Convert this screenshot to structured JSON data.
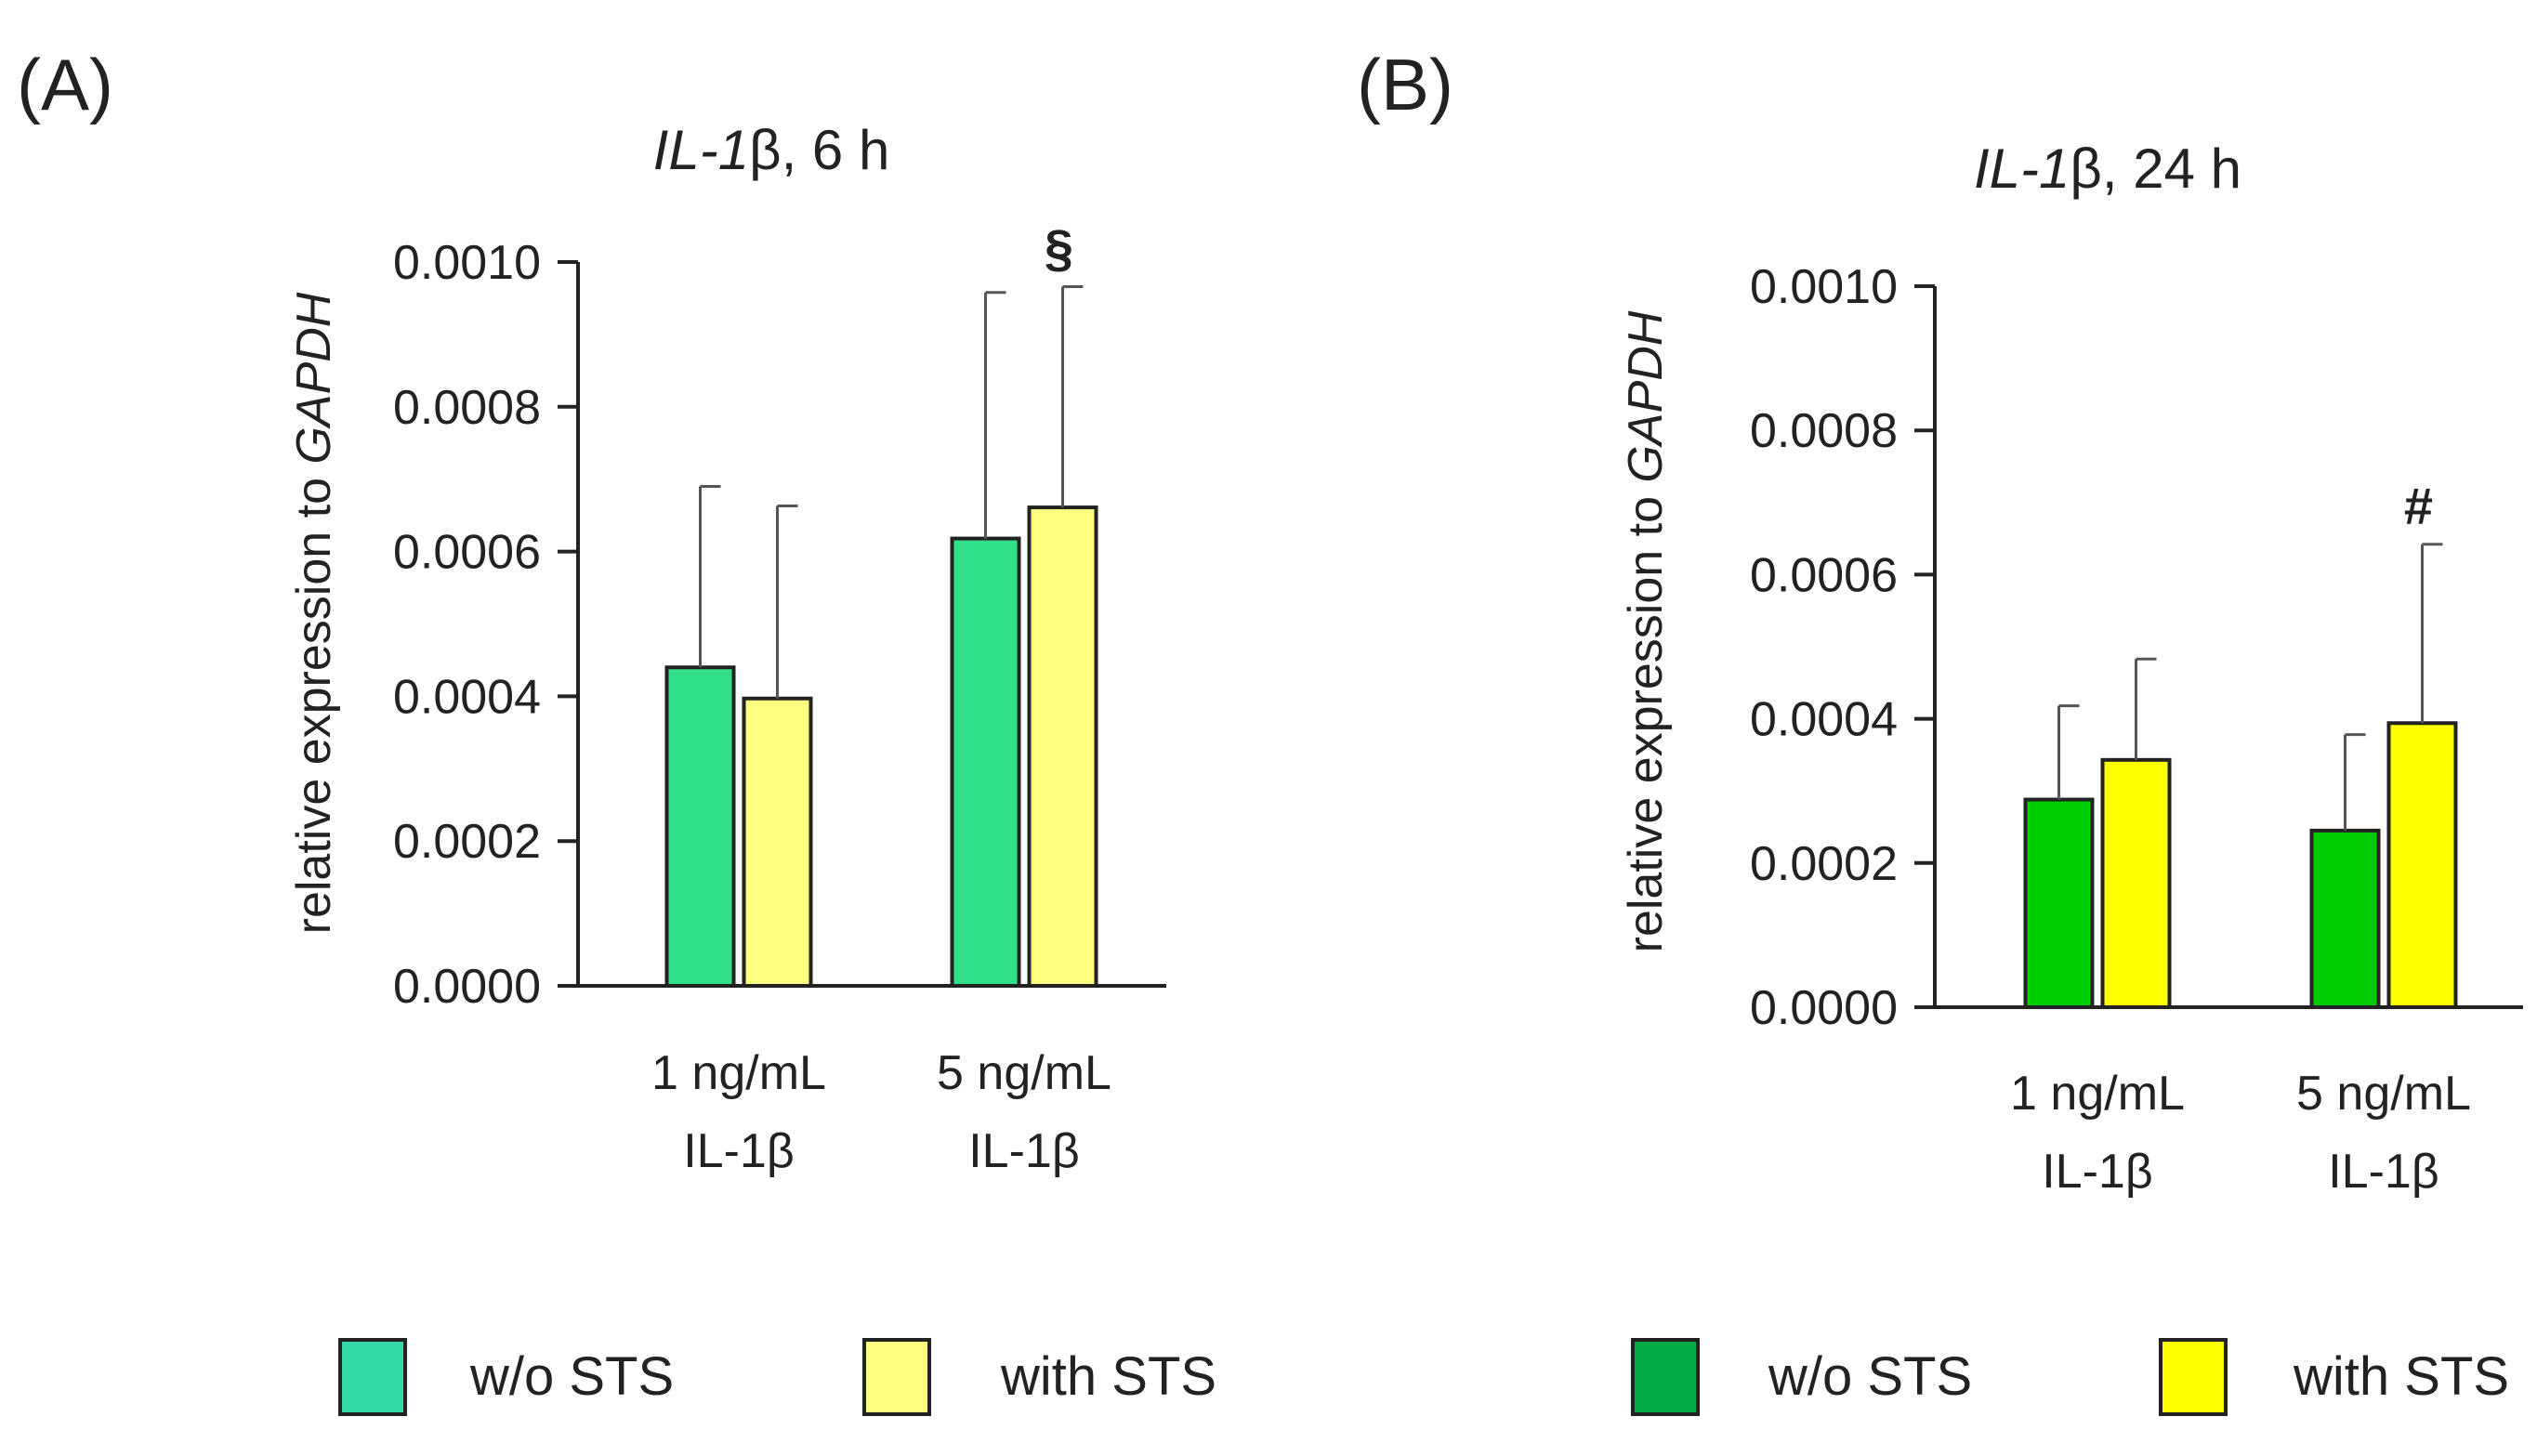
{
  "chart_data": [
    {
      "type": "bar",
      "panel_label": "(A)",
      "title_gene": "IL-1",
      "title_suffix": "β, 6 h",
      "ylabel_prefix": "relative expression to ",
      "ylabel_gene": "GAPDH",
      "ylim": [
        0,
        0.001
      ],
      "yticks": [
        "0.0000",
        "0.0002",
        "0.0004",
        "0.0006",
        "0.0008",
        "0.0010"
      ],
      "categories": [
        {
          "line1": "1 ng/mL",
          "line2": "IL-1β"
        },
        {
          "line1": "5 ng/mL",
          "line2": "IL-1β"
        }
      ],
      "series": [
        {
          "name": "w/o STS",
          "color": "#33e08a",
          "legend_color": "#33d9a6",
          "values": [
            0.00044,
            0.000618
          ],
          "errors": [
            0.00025,
            0.00034
          ]
        },
        {
          "name": "with STS",
          "color": "#ffff80",
          "legend_color": "#ffff80",
          "values": [
            0.000397,
            0.000661
          ],
          "errors": [
            0.000266,
            0.000305
          ]
        }
      ],
      "annotations": [
        {
          "series": 1,
          "category": 1,
          "text": "§"
        }
      ]
    },
    {
      "type": "bar",
      "panel_label": "(B)",
      "title_gene": "IL-1",
      "title_suffix": "β, 24 h",
      "ylabel_prefix": "relative expression to ",
      "ylabel_gene": "GAPDH",
      "ylim": [
        0,
        0.001
      ],
      "yticks": [
        "0.0000",
        "0.0002",
        "0.0004",
        "0.0006",
        "0.0008",
        "0.0010"
      ],
      "categories": [
        {
          "line1": "1 ng/mL",
          "line2": "IL-1β"
        },
        {
          "line1": "5 ng/mL",
          "line2": "IL-1β"
        }
      ],
      "series": [
        {
          "name": "w/o STS",
          "color": "#00cc00",
          "legend_color": "#00aa44",
          "values": [
            0.000288,
            0.000245
          ],
          "errors": [
            0.00013,
            0.000133
          ]
        },
        {
          "name": "with STS",
          "color": "#ffff00",
          "legend_color": "#ffff00",
          "values": [
            0.000343,
            0.000394
          ],
          "errors": [
            0.00014,
            0.000248
          ]
        }
      ],
      "annotations": [
        {
          "series": 1,
          "category": 1,
          "text": "#"
        }
      ]
    }
  ]
}
